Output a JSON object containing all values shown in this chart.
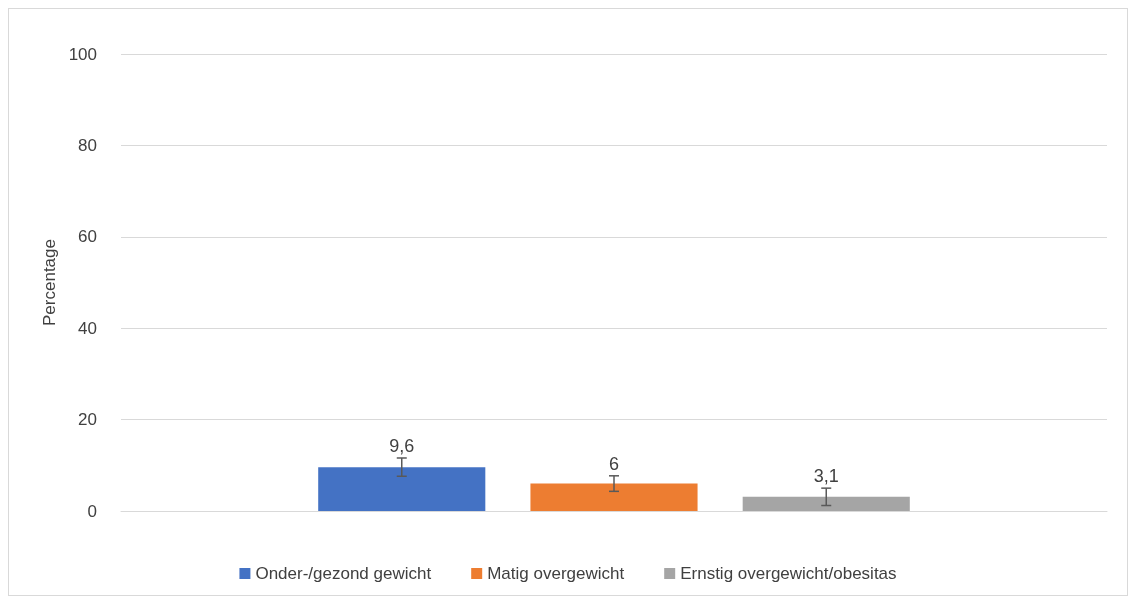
{
  "chart_data": {
    "type": "bar",
    "ylabel": "Percentage",
    "categories": [
      null
    ],
    "series": [
      {
        "name": "Onder-/gezond gewicht",
        "color": "#4472c4",
        "values": [
          9.6
        ],
        "value_labels": [
          "9,6"
        ],
        "errors": [
          2
        ]
      },
      {
        "name": "Matig overgewicht",
        "color": "#ed7d31",
        "values": [
          6
        ],
        "value_labels": [
          "6"
        ],
        "errors": [
          1.7
        ]
      },
      {
        "name": "Ernstig overgewicht/obesitas",
        "color": "#a5a5a5",
        "values": [
          3.1
        ],
        "value_labels": [
          "3,1"
        ],
        "errors": [
          1.9
        ]
      }
    ],
    "ylim": [
      0,
      100
    ],
    "yticks": [
      0,
      20,
      40,
      60,
      80,
      100
    ],
    "grid": "y",
    "legend": "bottom"
  }
}
